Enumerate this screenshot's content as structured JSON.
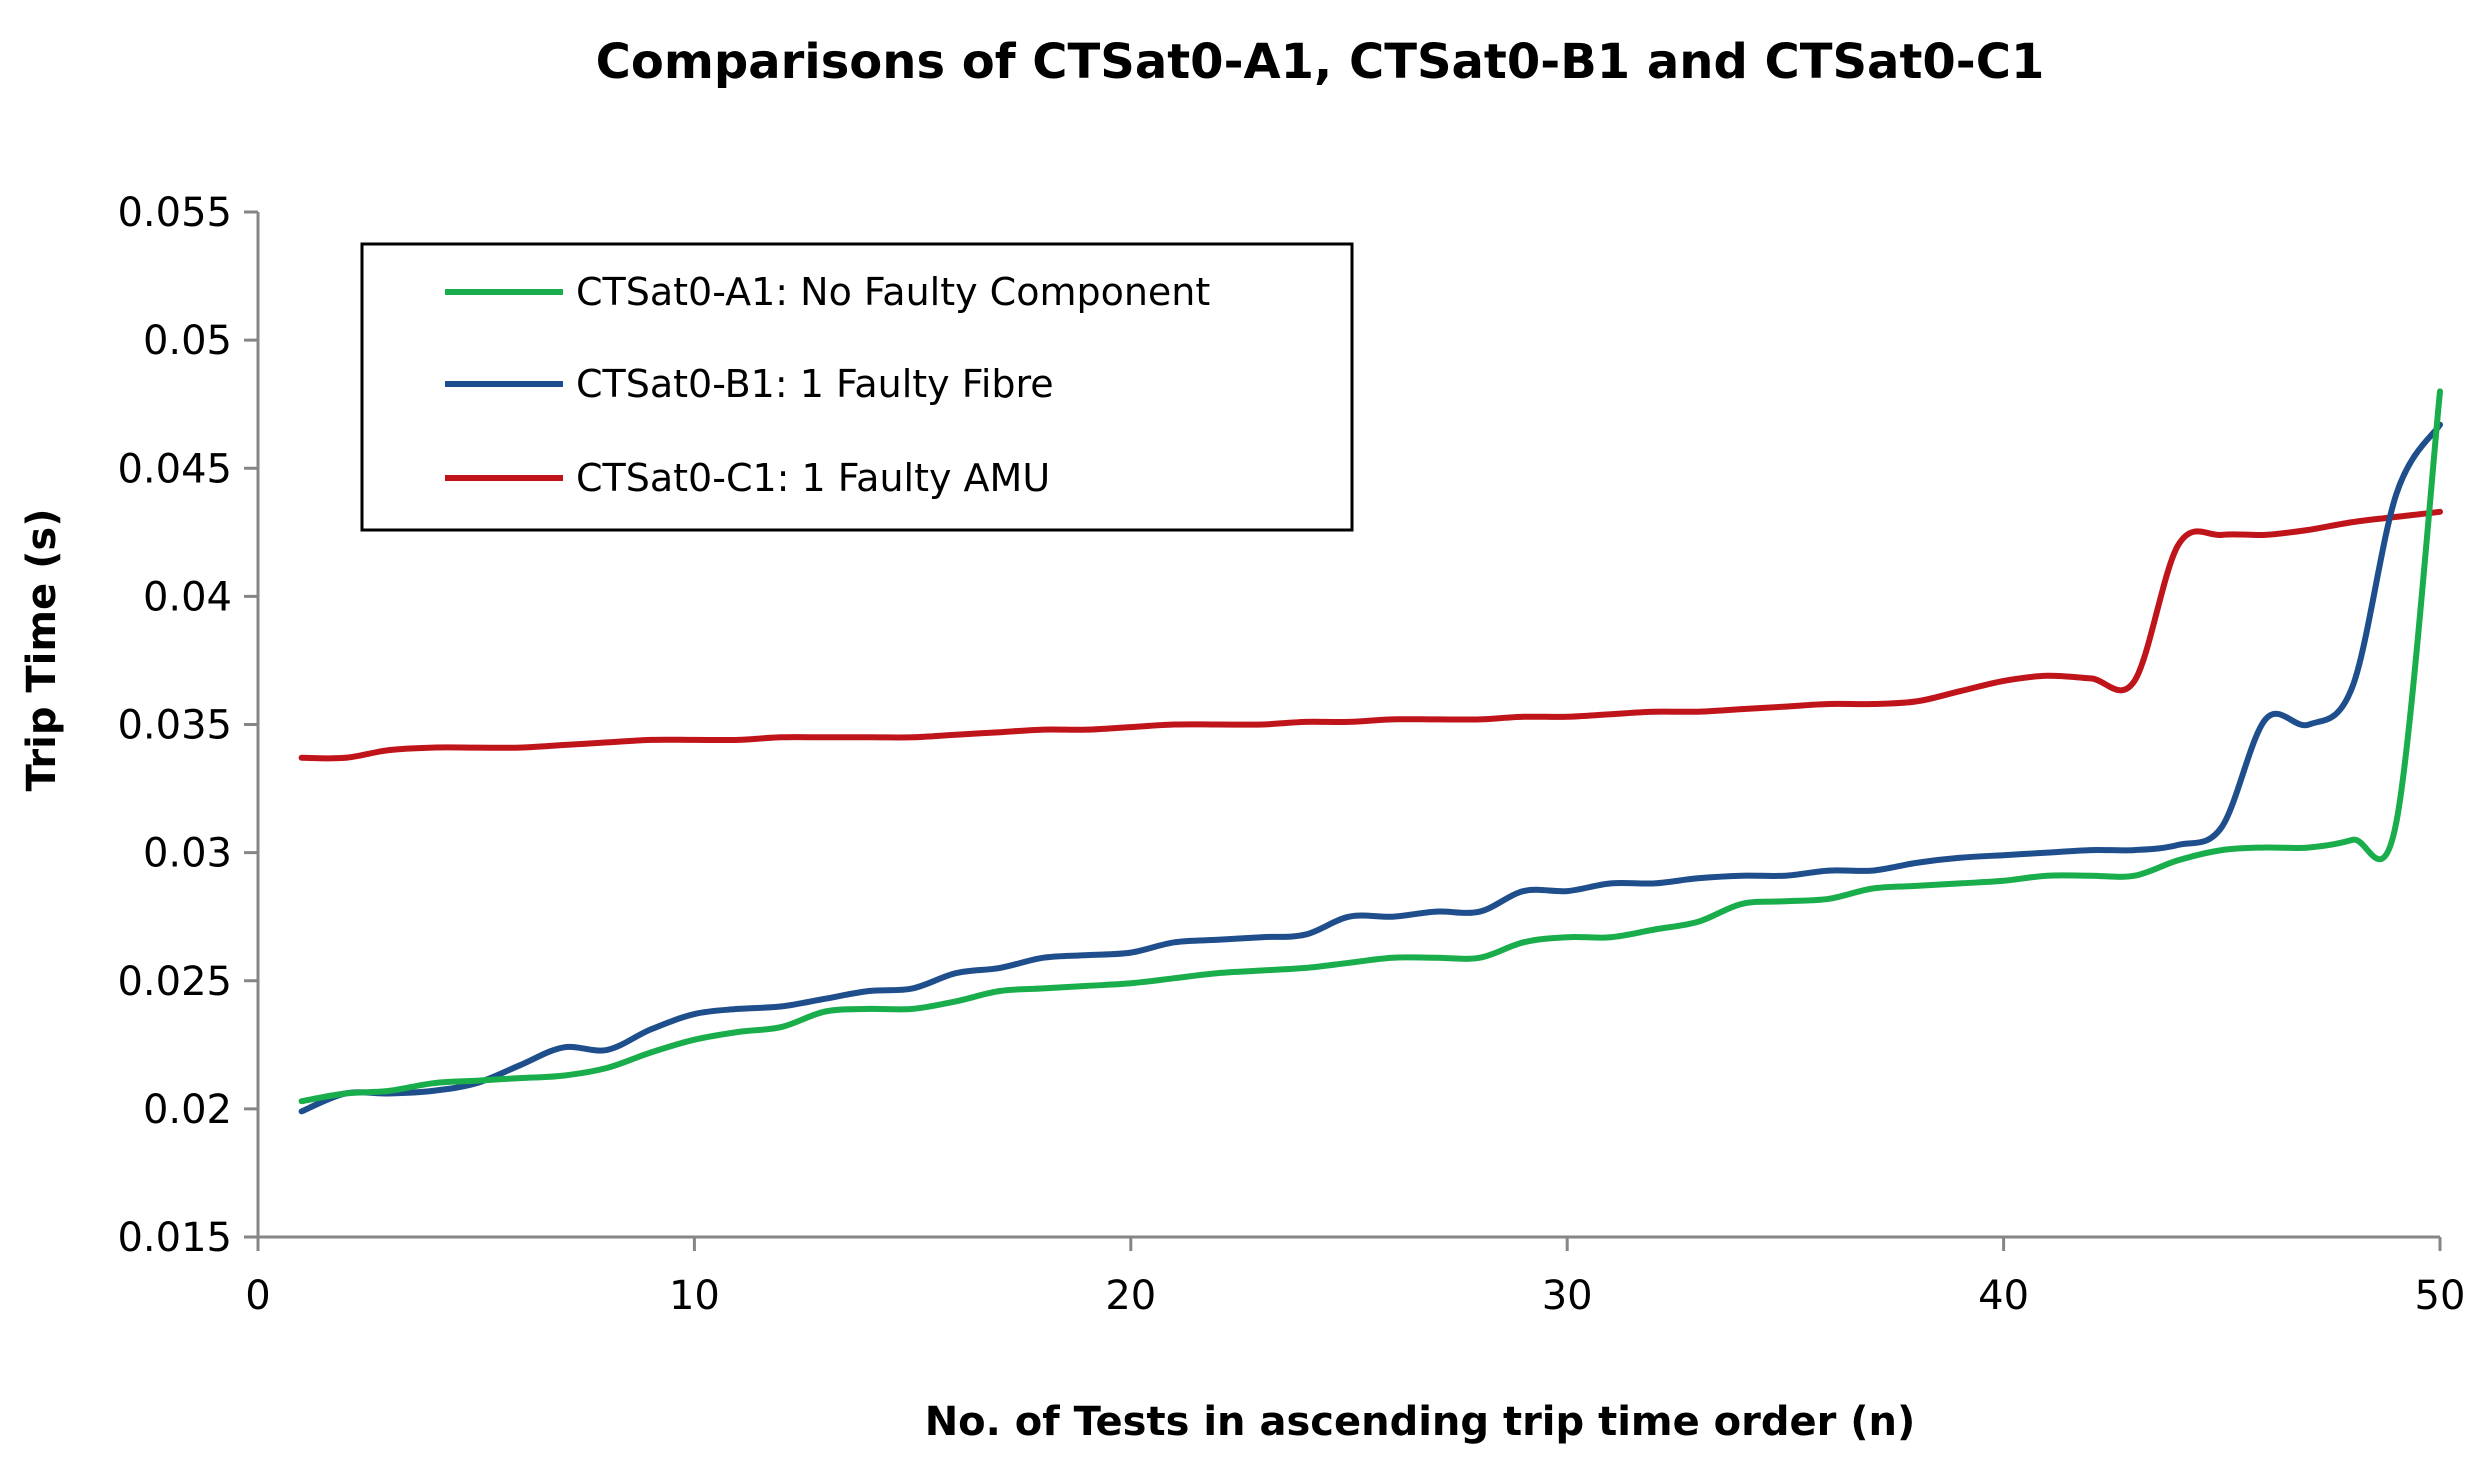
{
  "chart_data": {
    "type": "line",
    "title": "Comparisons of CTSat0-A1, CTSat0-B1 and CTSat0-C1",
    "xlabel": "No. of Tests in ascending  trip time order (n)",
    "ylabel": "Trip Time (s)",
    "xlim": [
      0,
      50
    ],
    "ylim": [
      0.015,
      0.055
    ],
    "xticks": [
      "0",
      "10",
      "20",
      "30",
      "40",
      "50"
    ],
    "yticks": [
      "0.015",
      "0.02",
      "0.025",
      "0.03",
      "0.035",
      "0.04",
      "0.045",
      "0.05",
      "0.055"
    ],
    "grid": false,
    "legend_position": "top-left",
    "x": [
      1,
      2,
      3,
      4,
      5,
      6,
      7,
      8,
      9,
      10,
      11,
      12,
      13,
      14,
      15,
      16,
      17,
      18,
      19,
      20,
      21,
      22,
      23,
      24,
      25,
      26,
      27,
      28,
      29,
      30,
      31,
      32,
      33,
      34,
      35,
      36,
      37,
      38,
      39,
      40,
      41,
      42,
      43,
      44,
      45,
      46,
      47,
      48,
      49,
      50
    ],
    "series": [
      {
        "name": "CTSat0-A1: No Faulty Component",
        "color": "#1aad4b",
        "values": [
          0.0203,
          0.0206,
          0.0207,
          0.021,
          0.0211,
          0.0212,
          0.0213,
          0.0216,
          0.0222,
          0.0227,
          0.023,
          0.0232,
          0.0238,
          0.0239,
          0.0239,
          0.0242,
          0.0246,
          0.0247,
          0.0248,
          0.0249,
          0.0251,
          0.0253,
          0.0254,
          0.0255,
          0.0257,
          0.0259,
          0.0259,
          0.0259,
          0.0265,
          0.0267,
          0.0267,
          0.027,
          0.0273,
          0.028,
          0.0281,
          0.0282,
          0.0286,
          0.0287,
          0.0288,
          0.0289,
          0.0291,
          0.0291,
          0.0291,
          0.0297,
          0.0301,
          0.0302,
          0.0302,
          0.0305,
          0.0312,
          0.048
        ]
      },
      {
        "name": "CTSat0-B1: 1 Faulty Fibre",
        "color": "#1f4e8c",
        "values": [
          0.0199,
          0.0206,
          0.0206,
          0.0207,
          0.021,
          0.0217,
          0.0224,
          0.0223,
          0.0231,
          0.0237,
          0.0239,
          0.024,
          0.0243,
          0.0246,
          0.0247,
          0.0253,
          0.0255,
          0.0259,
          0.026,
          0.0261,
          0.0265,
          0.0266,
          0.0267,
          0.0268,
          0.0275,
          0.0275,
          0.0277,
          0.0277,
          0.0285,
          0.0285,
          0.0288,
          0.0288,
          0.029,
          0.0291,
          0.0291,
          0.0293,
          0.0293,
          0.0296,
          0.0298,
          0.0299,
          0.03,
          0.0301,
          0.0301,
          0.0303,
          0.031,
          0.0352,
          0.035,
          0.0365,
          0.044,
          0.0467
        ]
      },
      {
        "name": "CTSat0-C1: 1 Faulty AMU",
        "color": "#c0141b",
        "values": [
          0.0337,
          0.0337,
          0.034,
          0.0341,
          0.0341,
          0.0341,
          0.0342,
          0.0343,
          0.0344,
          0.0344,
          0.0344,
          0.0345,
          0.0345,
          0.0345,
          0.0345,
          0.0346,
          0.0347,
          0.0348,
          0.0348,
          0.0349,
          0.035,
          0.035,
          0.035,
          0.0351,
          0.0351,
          0.0352,
          0.0352,
          0.0352,
          0.0353,
          0.0353,
          0.0354,
          0.0355,
          0.0355,
          0.0356,
          0.0357,
          0.0358,
          0.0358,
          0.0359,
          0.0363,
          0.0367,
          0.0369,
          0.0368,
          0.0367,
          0.042,
          0.0424,
          0.0424,
          0.0426,
          0.0429,
          0.0431,
          0.0433
        ]
      }
    ]
  }
}
